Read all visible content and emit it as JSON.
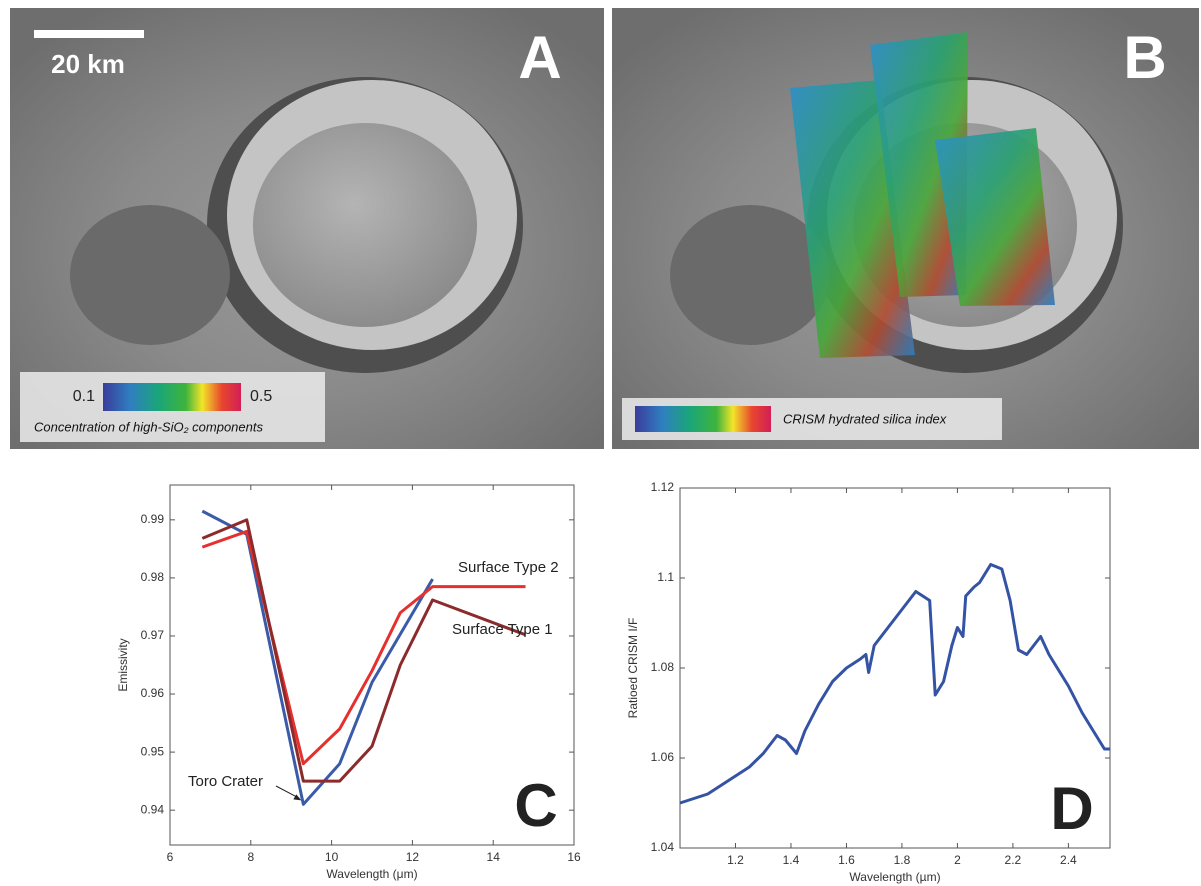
{
  "panels": {
    "a": {
      "label": "A",
      "scale_bar": "20 km",
      "colorbar_min": 0.1,
      "colorbar_max": 0.5,
      "caption": "Concentration of high-SiO₂ components"
    },
    "b": {
      "label": "B",
      "caption": "CRISM hydrated silica index"
    }
  },
  "chart_data": [
    {
      "type": "line",
      "label": "C",
      "x_label": "Wavelength (μm)",
      "y_label": "Emissivity",
      "xlim": [
        6,
        16
      ],
      "xticks": [
        6,
        8,
        10,
        12,
        14,
        16
      ],
      "ylim": [
        0.934,
        0.996
      ],
      "yticks": [
        0.94,
        0.95,
        0.96,
        0.97,
        0.98,
        0.99
      ],
      "series": [
        {
          "name": "Toro Crater",
          "color": "#3b5ba9",
          "x": [
            6.8,
            7.9,
            9.3,
            10.2,
            11,
            12.5
          ],
          "values": [
            0.9915,
            0.9875,
            0.941,
            0.948,
            0.962,
            0.9798
          ]
        },
        {
          "name": "Surface Type 2",
          "color": "#e5302e",
          "x": [
            6.8,
            7.9,
            9.3,
            10.2,
            11,
            11.7,
            12.5,
            14.8
          ],
          "values": [
            0.9853,
            0.988,
            0.948,
            0.954,
            0.964,
            0.974,
            0.9785,
            0.9785
          ]
        },
        {
          "name": "Surface Type 1",
          "color": "#8b2b2b",
          "x": [
            6.8,
            7.9,
            9.3,
            10.2,
            11,
            11.7,
            12.5,
            14.8
          ],
          "values": [
            0.9868,
            0.99,
            0.945,
            0.945,
            0.951,
            0.965,
            0.9762,
            0.9702
          ]
        }
      ]
    },
    {
      "type": "line",
      "label": "D",
      "x_label": "Wavelength (µm)",
      "y_label": "Ratioed CRISM I/F",
      "xlim": [
        1.0,
        2.55
      ],
      "xticks": [
        1.2,
        1.4,
        1.6,
        1.8,
        2,
        2.2,
        2.4
      ],
      "ylim": [
        1.04,
        1.12
      ],
      "yticks": [
        1.04,
        1.06,
        1.08,
        1.1,
        1.12
      ],
      "series": [
        {
          "color": "#3453a5",
          "x": [
            1.0,
            1.05,
            1.1,
            1.15,
            1.2,
            1.25,
            1.3,
            1.35,
            1.38,
            1.42,
            1.45,
            1.5,
            1.55,
            1.6,
            1.65,
            1.67,
            1.68,
            1.7,
            1.75,
            1.8,
            1.85,
            1.9,
            1.92,
            1.95,
            1.98,
            2.0,
            2.02,
            2.03,
            2.06,
            2.08,
            2.12,
            2.16,
            2.19,
            2.22,
            2.25,
            2.3,
            2.33,
            2.4,
            2.45,
            2.5,
            2.53,
            2.55
          ],
          "values": [
            1.05,
            1.051,
            1.052,
            1.054,
            1.056,
            1.058,
            1.061,
            1.065,
            1.064,
            1.061,
            1.066,
            1.072,
            1.077,
            1.08,
            1.082,
            1.083,
            1.079,
            1.085,
            1.089,
            1.093,
            1.097,
            1.095,
            1.074,
            1.077,
            1.085,
            1.089,
            1.087,
            1.096,
            1.098,
            1.099,
            1.103,
            1.102,
            1.095,
            1.084,
            1.083,
            1.087,
            1.083,
            1.076,
            1.07,
            1.065,
            1.062,
            1.062
          ]
        }
      ]
    }
  ]
}
